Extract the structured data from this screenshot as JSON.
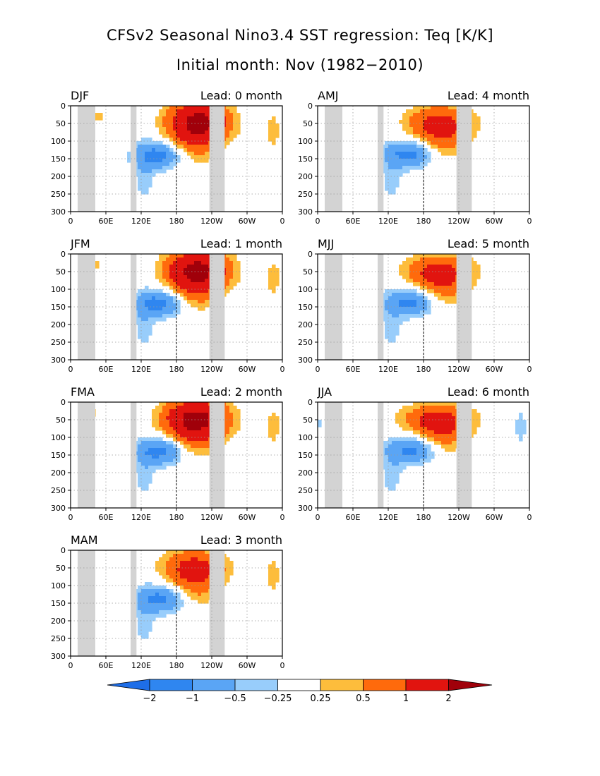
{
  "header": {
    "title": "CFSv2 Seasonal Nino3.4 SST regression: Teq [K/K]",
    "subtitle": "Initial month: Nov (1982−2010)"
  },
  "axes": {
    "x_tick_labels": [
      "0",
      "60E",
      "120E",
      "180",
      "120W",
      "60W",
      "0"
    ],
    "y_tick_labels": [
      "0",
      "50",
      "100",
      "150",
      "200",
      "250",
      "300"
    ],
    "x_range_deg_east": [
      0,
      360
    ],
    "y_range_depth": [
      0,
      300
    ],
    "y_inverted": true,
    "grid": "dotted",
    "dateline_dashed": true
  },
  "colorbar": {
    "labels": [
      "−2",
      "−1",
      "−0.5",
      "−0.25",
      "0.25",
      "0.5",
      "1",
      "2"
    ],
    "colors": [
      "#1e6ee8",
      "#2f86f0",
      "#5aa5f5",
      "#98cdfb",
      "#ffffff",
      "#fdbd3c",
      "#ff6a0c",
      "#e1140f",
      "#a0000a"
    ],
    "below_color": "#1e6ee8",
    "above_color": "#a0000a"
  },
  "land_color": "#d3d3d3",
  "chart_data": [
    {
      "type": "heatmap",
      "season": "DJF",
      "lead_label": "Lead: 0 month",
      "warm_peak": 2.0,
      "cold_peak": -1.0
    },
    {
      "type": "heatmap",
      "season": "JFM",
      "lead_label": "Lead: 1 month",
      "warm_peak": 2.0,
      "cold_peak": -1.0
    },
    {
      "type": "heatmap",
      "season": "FMA",
      "lead_label": "Lead: 2 month",
      "warm_peak": 2.0,
      "cold_peak": -1.0
    },
    {
      "type": "heatmap",
      "season": "MAM",
      "lead_label": "Lead: 3 month",
      "warm_peak": 1.0,
      "cold_peak": -1.0
    },
    {
      "type": "heatmap",
      "season": "AMJ",
      "lead_label": "Lead: 4 month",
      "warm_peak": 1.0,
      "cold_peak": -1.0
    },
    {
      "type": "heatmap",
      "season": "MJJ",
      "lead_label": "Lead: 5 month",
      "warm_peak": 1.0,
      "cold_peak": -1.0
    },
    {
      "type": "heatmap",
      "season": "JJA",
      "lead_label": "Lead: 6 month",
      "warm_peak": 1.0,
      "cold_peak": -1.0
    }
  ]
}
